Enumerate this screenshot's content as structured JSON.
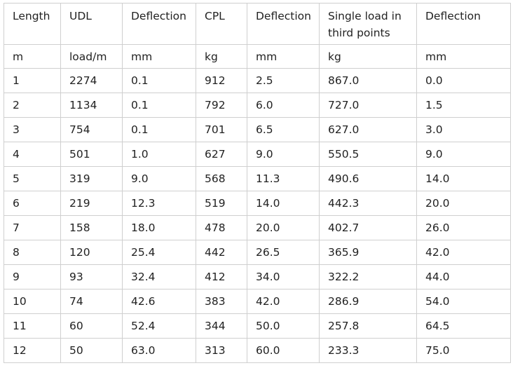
{
  "table": {
    "headers": [
      "Length",
      "UDL",
      "Deflection",
      "CPL",
      "Deflection",
      "Single load in third points",
      "Deflection"
    ],
    "units": [
      "m",
      "load/m",
      "mm",
      "kg",
      "mm",
      "kg",
      "mm"
    ],
    "rows": [
      [
        "1",
        "2274",
        "0.1",
        "912",
        "2.5",
        "867.0",
        "0.0"
      ],
      [
        "2",
        "1134",
        "0.1",
        "792",
        "6.0",
        "727.0",
        "1.5"
      ],
      [
        "3",
        "754",
        "0.1",
        "701",
        "6.5",
        "627.0",
        "3.0"
      ],
      [
        "4",
        "501",
        "1.0",
        "627",
        "9.0",
        "550.5",
        "9.0"
      ],
      [
        "5",
        "319",
        "9.0",
        "568",
        "11.3",
        "490.6",
        "14.0"
      ],
      [
        "6",
        "219",
        "12.3",
        "519",
        "14.0",
        "442.3",
        "20.0"
      ],
      [
        "7",
        "158",
        "18.0",
        "478",
        "20.0",
        "402.7",
        "26.0"
      ],
      [
        "8",
        "120",
        "25.4",
        "442",
        "26.5",
        "365.9",
        "42.0"
      ],
      [
        "9",
        "93",
        "32.4",
        "412",
        "34.0",
        "322.2",
        "44.0"
      ],
      [
        "10",
        "74",
        "42.6",
        "383",
        "42.0",
        "286.9",
        "54.0"
      ],
      [
        "11",
        "60",
        "52.4",
        "344",
        "50.0",
        "257.8",
        "64.5"
      ],
      [
        "12",
        "50",
        "63.0",
        "313",
        "60.0",
        "233.3",
        "75.0"
      ]
    ]
  }
}
